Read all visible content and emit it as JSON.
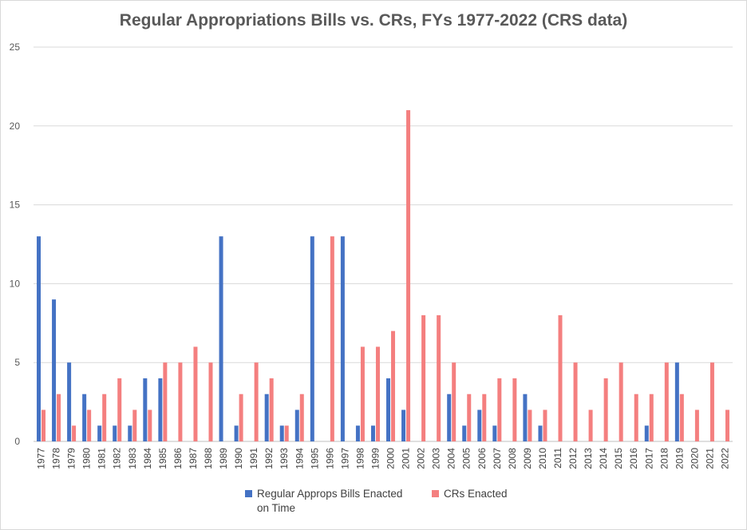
{
  "chart_data": {
    "type": "bar",
    "title": "Regular Appropriations Bills vs. CRs, FYs 1977-2022 (CRS data)",
    "xlabel": "",
    "ylabel": "",
    "ylim": [
      0,
      25
    ],
    "yticks": [
      0,
      5,
      10,
      15,
      20,
      25
    ],
    "grid": true,
    "legend_position": "bottom",
    "categories": [
      "1977",
      "1978",
      "1979",
      "1980",
      "1981",
      "1982",
      "1983",
      "1984",
      "1985",
      "1986",
      "1987",
      "1988",
      "1989",
      "1990",
      "1991",
      "1992",
      "1993",
      "1994",
      "1995",
      "1996",
      "1997",
      "1998",
      "1999",
      "2000",
      "2001",
      "2002",
      "2003",
      "2004",
      "2005",
      "2006",
      "2007",
      "2008",
      "2009",
      "2010",
      "2011",
      "2012",
      "2013",
      "2014",
      "2015",
      "2016",
      "2017",
      "2018",
      "2019",
      "2020",
      "2021",
      "2022"
    ],
    "series": [
      {
        "name": "Regular Approps Bills Enacted on Time",
        "color": "#4472c4",
        "values": [
          13,
          9,
          5,
          3,
          1,
          1,
          1,
          4,
          4,
          0,
          0,
          0,
          13,
          1,
          0,
          3,
          1,
          2,
          13,
          0,
          13,
          1,
          1,
          4,
          2,
          0,
          0,
          3,
          1,
          2,
          1,
          0,
          3,
          1,
          0,
          0,
          0,
          0,
          0,
          0,
          1,
          0,
          5,
          0,
          0,
          0
        ]
      },
      {
        "name": "CRs Enacted",
        "color": "#f47f7f",
        "values": [
          2,
          3,
          1,
          2,
          3,
          4,
          2,
          2,
          5,
          5,
          6,
          5,
          0,
          3,
          5,
          4,
          1,
          3,
          0,
          13,
          0,
          6,
          6,
          7,
          21,
          8,
          8,
          5,
          3,
          3,
          4,
          4,
          2,
          2,
          8,
          5,
          2,
          4,
          5,
          3,
          3,
          5,
          3,
          2,
          5,
          2
        ]
      }
    ]
  },
  "legend": {
    "item1_line1": "Regular Approps Bills Enacted",
    "item1_line2": "on Time",
    "item2": "CRs Enacted"
  }
}
